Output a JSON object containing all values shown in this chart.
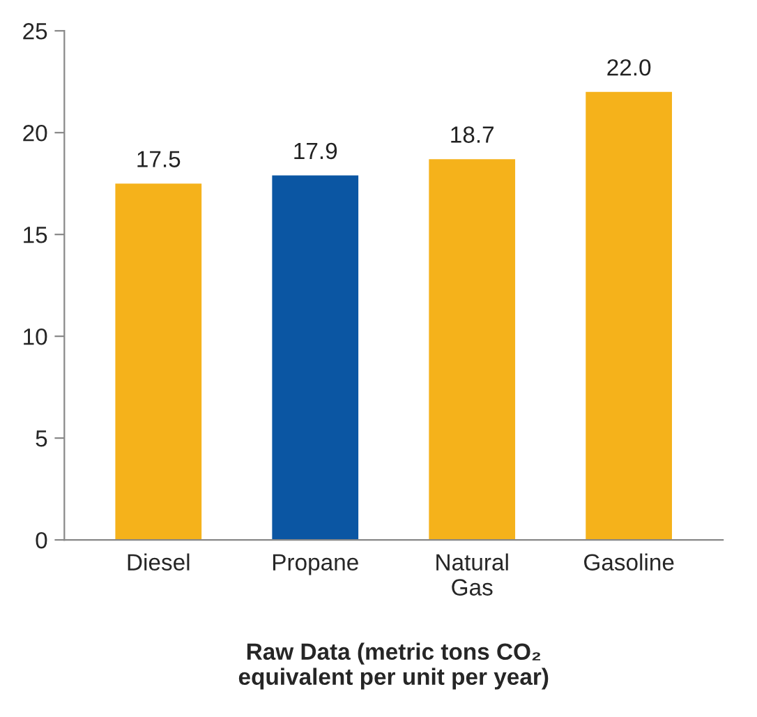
{
  "chart_data": {
    "type": "bar",
    "categories": [
      "Diesel",
      "Propane",
      "Natural\nGas",
      "Gasoline"
    ],
    "values": [
      17.5,
      17.9,
      18.7,
      22.0
    ],
    "colors": [
      "#f5b21b",
      "#0b56a3",
      "#f5b21b",
      "#f5b21b"
    ],
    "value_labels": [
      "17.5",
      "17.9",
      "18.7",
      "22.0"
    ],
    "xlabel": "Raw Data (metric tons CO₂\nequivalent per unit per year)",
    "ylim": [
      0,
      25
    ],
    "yticks": [
      0,
      5,
      10,
      15,
      20,
      25
    ]
  }
}
